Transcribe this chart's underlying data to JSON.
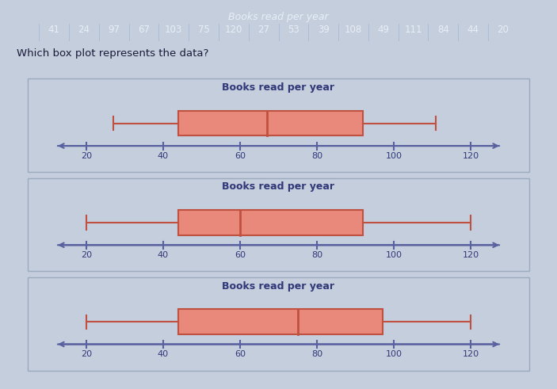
{
  "top_title": "Books read per year",
  "top_data": [
    "41",
    "24",
    "97",
    "67",
    "103",
    "75",
    "120",
    "27",
    "53",
    "39",
    "108",
    "49",
    "111",
    "84",
    "44",
    "20"
  ],
  "box_plots": [
    {
      "title": "Books read per year",
      "whisker_low": 27,
      "q1": 44,
      "median": 67,
      "q3": 92,
      "whisker_high": 111
    },
    {
      "title": "Books read per year",
      "whisker_low": 20,
      "q1": 44,
      "median": 60,
      "q3": 92,
      "whisker_high": 120
    },
    {
      "title": "Books read per year",
      "whisker_low": 20,
      "q1": 44,
      "median": 75,
      "q3": 97,
      "whisker_high": 120
    }
  ],
  "xmin": 12,
  "xmax": 128,
  "xticks": [
    20,
    40,
    60,
    80,
    100,
    120
  ],
  "box_facecolor": "#e8897b",
  "box_edgecolor": "#c05040",
  "whisker_color": "#c05040",
  "axis_color": "#5860a0",
  "panel_bg": "#dde4ee",
  "outer_bg": "#c5cedc",
  "title_color": "#303878",
  "tick_label_color": "#303878",
  "header_bg": "#7090c0",
  "header_title_color": "#e8eef8",
  "header_data_color": "#e8eef8",
  "question_color": "#1a1a3a",
  "question_text": "Which box plot represents the data?"
}
